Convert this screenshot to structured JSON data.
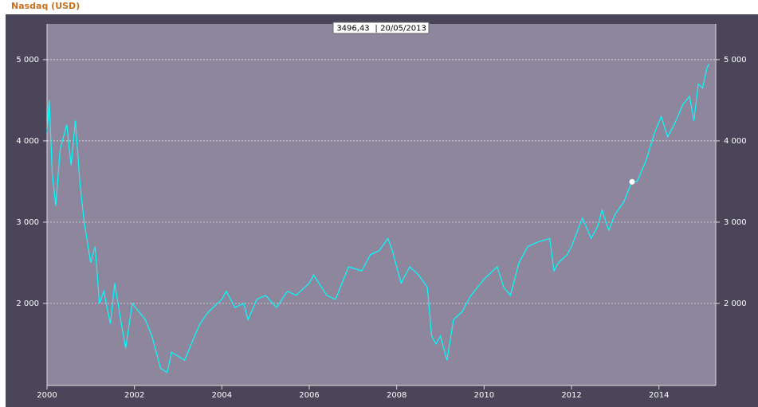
{
  "chart_data": {
    "type": "line",
    "title": "Nasdaq  (USD)",
    "tooltip": {
      "value": 3496.43,
      "value_label": "3496,43",
      "separator": "|",
      "date": "20/05/2013"
    },
    "xlim": [
      2000,
      2015.3
    ],
    "xticks": [
      2000,
      2002,
      2004,
      2006,
      2008,
      2010,
      2012,
      2014
    ],
    "ylim": [
      990,
      5440
    ],
    "yticks": [
      {
        "value": 2000,
        "label": "2 000"
      },
      {
        "value": 3000,
        "label": "3 000"
      },
      {
        "value": 4000,
        "label": "4 000"
      },
      {
        "value": 5000,
        "label": "5 000"
      }
    ],
    "grid": true,
    "series": [
      {
        "name": "Nasdaq",
        "color": "#00ffff",
        "x": [
          2000.0,
          2000.05,
          2000.12,
          2000.2,
          2000.3,
          2000.45,
          2000.55,
          2000.65,
          2000.75,
          2000.85,
          2001.0,
          2001.1,
          2001.2,
          2001.3,
          2001.45,
          2001.55,
          2001.7,
          2001.8,
          2001.95,
          2002.1,
          2002.25,
          2002.4,
          2002.55,
          2002.6,
          2002.75,
          2002.85,
          2003.0,
          2003.15,
          2003.3,
          2003.5,
          2003.7,
          2004.0,
          2004.1,
          2004.3,
          2004.5,
          2004.6,
          2004.8,
          2005.0,
          2005.25,
          2005.5,
          2005.7,
          2006.0,
          2006.1,
          2006.4,
          2006.6,
          2006.9,
          2007.2,
          2007.4,
          2007.6,
          2007.8,
          2007.9,
          2008.0,
          2008.1,
          2008.3,
          2008.5,
          2008.7,
          2008.8,
          2008.9,
          2009.0,
          2009.15,
          2009.3,
          2009.5,
          2009.7,
          2010.0,
          2010.3,
          2010.45,
          2010.6,
          2010.8,
          2011.0,
          2011.2,
          2011.5,
          2011.6,
          2011.7,
          2011.9,
          2012.0,
          2012.25,
          2012.45,
          2012.6,
          2012.7,
          2012.85,
          2013.0,
          2013.2,
          2013.38,
          2013.5,
          2013.7,
          2013.9,
          2014.05,
          2014.2,
          2014.35,
          2014.55,
          2014.7,
          2014.8,
          2014.9,
          2015.0,
          2015.1,
          2015.15
        ],
        "values": [
          4100,
          4500,
          3600,
          3200,
          3900,
          4200,
          3700,
          4250,
          3500,
          3000,
          2500,
          2700,
          2000,
          2150,
          1750,
          2250,
          1750,
          1450,
          2000,
          1900,
          1800,
          1600,
          1300,
          1200,
          1150,
          1400,
          1350,
          1300,
          1500,
          1750,
          1900,
          2050,
          2150,
          1950,
          2000,
          1800,
          2050,
          2100,
          1950,
          2150,
          2100,
          2250,
          2350,
          2100,
          2050,
          2450,
          2400,
          2600,
          2650,
          2800,
          2650,
          2450,
          2250,
          2450,
          2350,
          2200,
          1600,
          1500,
          1600,
          1300,
          1800,
          1900,
          2100,
          2300,
          2450,
          2200,
          2100,
          2500,
          2700,
          2750,
          2800,
          2400,
          2500,
          2600,
          2700,
          3050,
          2800,
          2950,
          3150,
          2900,
          3100,
          3250,
          3496.43,
          3500,
          3750,
          4100,
          4300,
          4050,
          4200,
          4450,
          4550,
          4250,
          4700,
          4650,
          4900,
          4950
        ]
      }
    ]
  }
}
